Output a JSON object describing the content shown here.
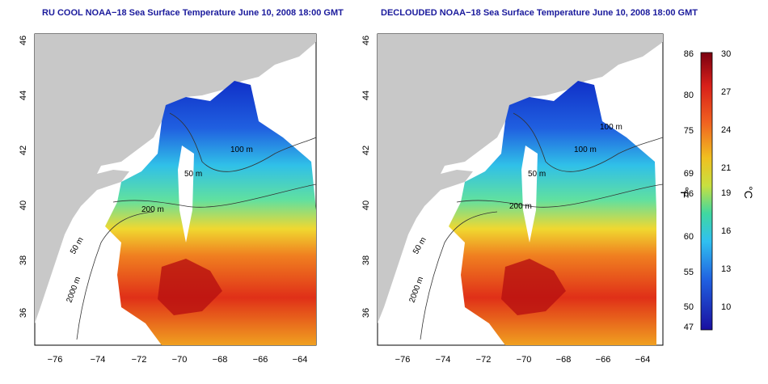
{
  "panels": [
    {
      "title": "RU COOL NOAA−18 Sea Surface Temperature June 10, 2008 18:00 GMT",
      "contour_labels": [
        "50 m",
        "100 m",
        "200 m",
        "50 m",
        "2000 m"
      ]
    },
    {
      "title": "DECLOUDED NOAA−18 Sea Surface Temperature June 10, 2008 18:00 GMT",
      "contour_labels": [
        "50 m",
        "100 m",
        "100 m",
        "200 m",
        "50 m",
        "2000 m"
      ]
    }
  ],
  "axes": {
    "x_ticks": [
      "−76",
      "−74",
      "−72",
      "−70",
      "−68",
      "−66",
      "−64"
    ],
    "y_ticks": [
      "36",
      "38",
      "40",
      "42",
      "44",
      "46"
    ]
  },
  "colorbar": {
    "f_label": "°F",
    "c_label": "°C",
    "f_ticks": [
      "86",
      "80",
      "75",
      "69",
      "66",
      "60",
      "55",
      "50",
      "47"
    ],
    "c_ticks": [
      "30",
      "27",
      "24",
      "21",
      "19",
      "16",
      "13",
      "10"
    ]
  },
  "colors": {
    "land": "#c8c8c8",
    "title": "#1a1a9c"
  }
}
